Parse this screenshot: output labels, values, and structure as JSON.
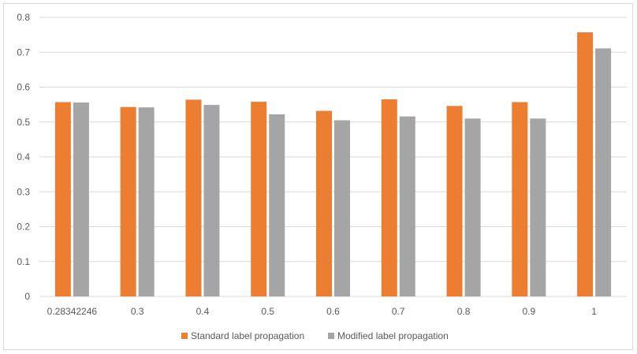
{
  "chart_data": {
    "type": "bar",
    "categories": [
      "0.28342246",
      "0.3",
      "0.4",
      "0.5",
      "0.6",
      "0.7",
      "0.8",
      "0.9",
      "1"
    ],
    "series": [
      {
        "name": "Standard label propagation",
        "color": "#ed7d31",
        "values": [
          0.557,
          0.543,
          0.564,
          0.558,
          0.532,
          0.565,
          0.546,
          0.557,
          0.757
        ]
      },
      {
        "name": "Modified label propagation",
        "color": "#a5a5a5",
        "values": [
          0.556,
          0.542,
          0.549,
          0.522,
          0.505,
          0.516,
          0.51,
          0.51,
          0.711
        ]
      }
    ],
    "yticks": [
      "0",
      "0.1",
      "0.2",
      "0.3",
      "0.4",
      "0.5",
      "0.6",
      "0.7",
      "0.8"
    ],
    "ylim": [
      0,
      0.8
    ],
    "grid": true,
    "legend": "bottom"
  }
}
